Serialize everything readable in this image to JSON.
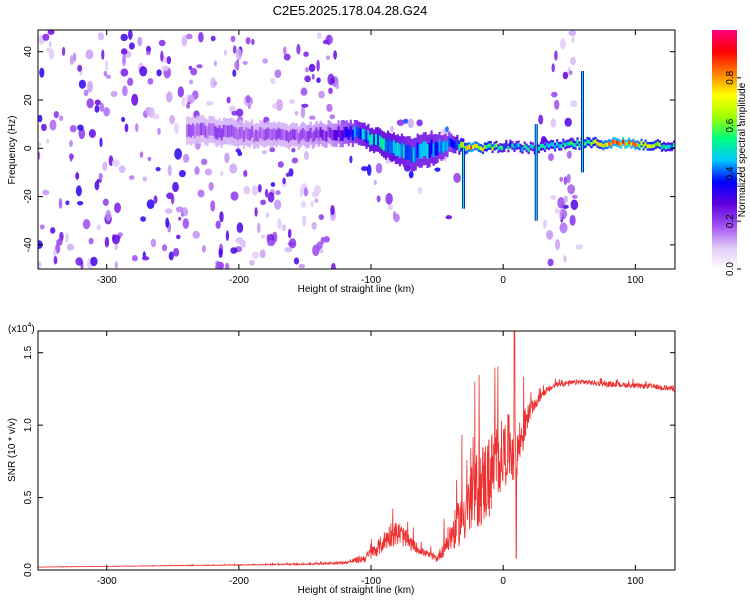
{
  "title": "C2E5.2025.178.04.28.G24",
  "chart_data": [
    {
      "type": "heatmap",
      "xlabel": "Height of straight line (km)",
      "ylabel": "Frequency (Hz)",
      "xlim": [
        -352,
        130
      ],
      "ylim": [
        -50,
        49
      ],
      "xticks": [
        -300,
        -200,
        -100,
        0,
        100
      ],
      "xtick_labels": [
        "-300",
        "-200",
        "-100",
        "0",
        "100"
      ],
      "yticks": [
        -40,
        -20,
        0,
        20,
        40
      ],
      "ytick_labels": [
        "-40",
        "-20",
        "0",
        "20",
        "40"
      ],
      "colorbar": {
        "label": "Normalized spectral amplitude",
        "range": [
          0,
          1
        ],
        "ticks": [
          0.0,
          0.2,
          0.4,
          0.6,
          0.8
        ],
        "tick_labels": [
          "0.0",
          "0.2",
          "0.4",
          "0.6",
          "0.8"
        ],
        "colors": [
          "#ffffff",
          "#e0c8f8",
          "#a050f0",
          "#6000e0",
          "#0000ff",
          "#00c8ff",
          "#00ff80",
          "#a0ff00",
          "#ffff00",
          "#ff8000",
          "#ff0000",
          "#ff0080"
        ]
      },
      "regions": [
        {
          "x": [
            -352,
            -125
          ],
          "f": [
            -50,
            49
          ],
          "level": 0.25,
          "density": "high"
        },
        {
          "x": [
            -125,
            -40
          ],
          "f": [
            -12,
            12
          ],
          "level": 0.35,
          "density": "medium"
        },
        {
          "x": [
            -110,
            -30
          ],
          "f": [
            -30,
            0
          ],
          "level": 0.2,
          "density": "low"
        },
        {
          "x": [
            28,
            58
          ],
          "f": [
            -50,
            49
          ],
          "level": 0.25,
          "density": "high"
        }
      ],
      "ridge": [
        {
          "x": -240,
          "f": 8,
          "width": 10,
          "level": 0.18
        },
        {
          "x": -200,
          "f": 6,
          "width": 9,
          "level": 0.2
        },
        {
          "x": -160,
          "f": 5,
          "width": 8,
          "level": 0.2
        },
        {
          "x": -130,
          "f": 6,
          "width": 8,
          "level": 0.25
        },
        {
          "x": -110,
          "f": 6,
          "width": 8,
          "level": 0.45
        },
        {
          "x": -100,
          "f": 4,
          "width": 8,
          "level": 0.5
        },
        {
          "x": -85,
          "f": 0,
          "width": 10,
          "level": 0.5
        },
        {
          "x": -70,
          "f": -2,
          "width": 12,
          "level": 0.45
        },
        {
          "x": -55,
          "f": 0,
          "width": 12,
          "level": 0.45
        },
        {
          "x": -40,
          "f": 2,
          "width": 6,
          "level": 0.4
        },
        {
          "x": -25,
          "f": 0,
          "width": 2,
          "level": 0.8
        },
        {
          "x": 0,
          "f": 1,
          "width": 2,
          "level": 0.5
        },
        {
          "x": 20,
          "f": 0,
          "width": 2,
          "level": 0.5
        },
        {
          "x": 60,
          "f": 2,
          "width": 2,
          "level": 0.6
        },
        {
          "x": 90,
          "f": 2,
          "width": 2,
          "level": 0.85
        },
        {
          "x": 130,
          "f": 1,
          "width": 2,
          "level": 0.5
        }
      ],
      "spikes": [
        {
          "x": 25,
          "f": [
            -30,
            10
          ]
        },
        {
          "x": 60,
          "f": [
            -10,
            32
          ]
        },
        {
          "x": -30,
          "f": [
            -25,
            0
          ]
        }
      ]
    },
    {
      "type": "line",
      "xlabel": "Height of straight line (km)",
      "ylabel": "SNR (10 * v/v)",
      "y_multiplier": "(x10^4)",
      "xlim": [
        -352,
        130
      ],
      "ylim": [
        0,
        16500
      ],
      "xticks": [
        -300,
        -200,
        -100,
        0,
        100
      ],
      "xtick_labels": [
        "-300",
        "-200",
        "-100",
        "0",
        "100"
      ],
      "yticks": [
        0,
        5000,
        10000,
        15000
      ],
      "ytick_labels": [
        "0.0",
        "0.5",
        "1.0",
        "1.5"
      ],
      "line_color": "#ee3030",
      "series": [
        {
          "x": [
            -352,
            -300,
            -250,
            -200,
            -150,
            -120,
            -105,
            -95,
            -85,
            -78,
            -70,
            -60,
            -50,
            -42,
            -35,
            -30,
            -25,
            -20,
            -15,
            -10,
            -5,
            0,
            5,
            10,
            15,
            20,
            25,
            30,
            40,
            50,
            60,
            70,
            80,
            90,
            100,
            110,
            120,
            130
          ],
          "y": [
            200,
            250,
            300,
            350,
            400,
            500,
            800,
            1500,
            2500,
            2500,
            1800,
            1200,
            800,
            2000,
            3000,
            4000,
            4500,
            5500,
            6000,
            6500,
            7500,
            8000,
            8500,
            8000,
            9500,
            11000,
            11500,
            12200,
            12800,
            12900,
            13000,
            12900,
            12800,
            12800,
            12700,
            12700,
            12600,
            12500
          ],
          "noise": [
            20,
            20,
            30,
            40,
            80,
            150,
            500,
            900,
            1500,
            1400,
            800,
            400,
            400,
            1500,
            2500,
            3500,
            4000,
            4500,
            5000,
            5000,
            4500,
            4000,
            4000,
            3500,
            2500,
            1000,
            600,
            400,
            300,
            300,
            300,
            300,
            300,
            300,
            300,
            300,
            300,
            300
          ]
        }
      ]
    }
  ]
}
